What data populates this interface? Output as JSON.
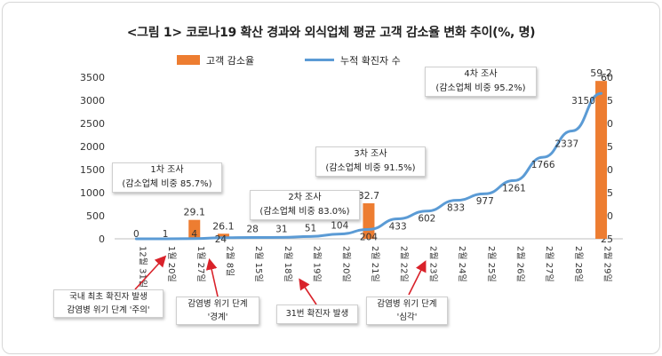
{
  "title": "<그림 1> 코로나19 확산 경과와 외식업체 평균 고객 감소율 변화 추이(%, 명)",
  "legend": {
    "bar_label": "고객 감소율",
    "line_label": "누적 확진자 수"
  },
  "colors": {
    "bar": "#ED7D31",
    "line": "#5B9BD5",
    "arrow": "#d9222a",
    "grid": "#d9d9d9",
    "text": "#333333"
  },
  "callouts": [
    {
      "line1": "1차 조사",
      "line2": "(감소업체 비중 85.7%)"
    },
    {
      "line1": "2차 조사",
      "line2": "(감소업체 비중 83.0%)"
    },
    {
      "line1": "3차 조사",
      "line2": "(감소업체 비중 91.5%)"
    },
    {
      "line1": "4차 조사",
      "line2": "(감소업체 비중 95.2%)"
    }
  ],
  "events": [
    {
      "line1": "국내 최초 확진자 발생",
      "line2": "감염병 위기 단계 '주의'"
    },
    {
      "line1": "감염병 위기 단계",
      "line2": "'경계'"
    },
    {
      "line1": "31번 확진자 발생",
      "line2": ""
    },
    {
      "line1": "감염병 위기 단계",
      "line2": "'심각'"
    }
  ],
  "chart_data": {
    "type": "bar",
    "categories": [
      "12월 31일",
      "1월 20일",
      "1월 27일",
      "2월 8일",
      "2월 15일",
      "2월 18일",
      "2월 19일",
      "2월 20일",
      "2월 21일",
      "2월 22일",
      "2월 23일",
      "2월 24일",
      "2월 25일",
      "2월 26일",
      "2월 27일",
      "2월 28일",
      "2월 29일"
    ],
    "series": [
      {
        "name": "고객 감소율",
        "type": "bar",
        "axis": "right",
        "values": [
          null,
          null,
          29.1,
          26.1,
          null,
          null,
          null,
          null,
          32.7,
          null,
          null,
          null,
          null,
          null,
          null,
          null,
          59.2
        ]
      },
      {
        "name": "누적 확진자 수",
        "type": "line",
        "axis": "left",
        "values": [
          0,
          1,
          4,
          24,
          28,
          31,
          51,
          104,
          204,
          433,
          602,
          833,
          977,
          1261,
          1766,
          2337,
          3150
        ]
      }
    ],
    "yleft_ticks": [
      0,
      500,
      1000,
      1500,
      2000,
      2500,
      3000,
      3500
    ],
    "yright_ticks": [
      25,
      30,
      35,
      40,
      45,
      50,
      55,
      60
    ],
    "yleft_lim": [
      0,
      3500
    ],
    "yright_lim": [
      25,
      60
    ],
    "grid": false,
    "legend_position": "top"
  }
}
